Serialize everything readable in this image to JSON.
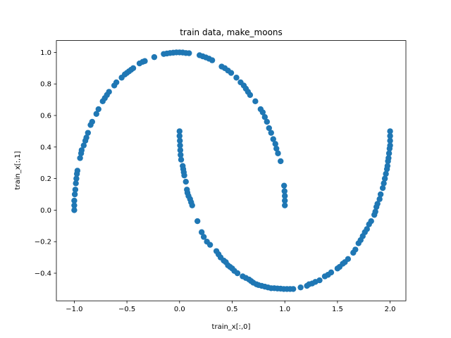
{
  "chart_data": {
    "type": "scatter",
    "title": "train data, make_moons",
    "xlabel": "train_x[:,0]",
    "ylabel": "train_x[:,1]",
    "xlim": [
      -1.17,
      2.15
    ],
    "ylim": [
      -0.575,
      1.075
    ],
    "xticks": [
      -1.0,
      -0.5,
      0.0,
      0.5,
      1.0,
      1.5,
      2.0
    ],
    "xtick_labels": [
      "−1.0",
      "−0.5",
      "0.0",
      "0.5",
      "1.0",
      "1.5",
      "2.0"
    ],
    "yticks": [
      -0.4,
      -0.2,
      0.0,
      0.2,
      0.4,
      0.6,
      0.8,
      1.0
    ],
    "ytick_labels": [
      "−0.4",
      "−0.2",
      "0.0",
      "0.2",
      "0.4",
      "0.6",
      "0.8",
      "1.0"
    ],
    "grid": false,
    "color": "#1f77b4",
    "points": [
      [
        -1.0,
        0.0
      ],
      [
        -1.0,
        0.03
      ],
      [
        -1.0,
        0.06
      ],
      [
        -0.995,
        0.1
      ],
      [
        -0.99,
        0.13
      ],
      [
        -0.985,
        0.17
      ],
      [
        -0.98,
        0.2
      ],
      [
        -0.975,
        0.23
      ],
      [
        -0.97,
        0.25
      ],
      [
        -0.945,
        0.33
      ],
      [
        -0.935,
        0.36
      ],
      [
        -0.93,
        0.38
      ],
      [
        -0.91,
        0.41
      ],
      [
        -0.895,
        0.44
      ],
      [
        -0.885,
        0.46
      ],
      [
        -0.87,
        0.49
      ],
      [
        -0.845,
        0.54
      ],
      [
        -0.83,
        0.56
      ],
      [
        -0.79,
        0.61
      ],
      [
        -0.77,
        0.64
      ],
      [
        -0.73,
        0.69
      ],
      [
        -0.71,
        0.71
      ],
      [
        -0.69,
        0.73
      ],
      [
        -0.67,
        0.75
      ],
      [
        -0.62,
        0.79
      ],
      [
        -0.6,
        0.81
      ],
      [
        -0.55,
        0.84
      ],
      [
        -0.52,
        0.86
      ],
      [
        -0.5,
        0.87
      ],
      [
        -0.48,
        0.88
      ],
      [
        -0.46,
        0.89
      ],
      [
        -0.44,
        0.9
      ],
      [
        -0.38,
        0.93
      ],
      [
        -0.35,
        0.94
      ],
      [
        -0.33,
        0.945
      ],
      [
        -0.24,
        0.97
      ],
      [
        -0.15,
        0.99
      ],
      [
        -0.12,
        0.993
      ],
      [
        -0.09,
        0.996
      ],
      [
        -0.06,
        0.998
      ],
      [
        -0.03,
        1.0
      ],
      [
        0.0,
        1.0
      ],
      [
        0.03,
        0.999
      ],
      [
        0.06,
        0.996
      ],
      [
        0.09,
        0.995
      ],
      [
        0.19,
        0.982
      ],
      [
        0.22,
        0.975
      ],
      [
        0.25,
        0.968
      ],
      [
        0.28,
        0.96
      ],
      [
        0.31,
        0.95
      ],
      [
        0.4,
        0.91
      ],
      [
        0.43,
        0.9
      ],
      [
        0.46,
        0.885
      ],
      [
        0.49,
        0.87
      ],
      [
        0.54,
        0.84
      ],
      [
        0.58,
        0.81
      ],
      [
        0.61,
        0.79
      ],
      [
        0.63,
        0.77
      ],
      [
        0.65,
        0.75
      ],
      [
        0.67,
        0.73
      ],
      [
        0.72,
        0.69
      ],
      [
        0.77,
        0.64
      ],
      [
        0.79,
        0.62
      ],
      [
        0.81,
        0.59
      ],
      [
        0.83,
        0.56
      ],
      [
        0.85,
        0.52
      ],
      [
        0.87,
        0.49
      ],
      [
        0.89,
        0.45
      ],
      [
        0.91,
        0.42
      ],
      [
        0.92,
        0.39
      ],
      [
        0.935,
        0.36
      ],
      [
        0.96,
        0.31
      ],
      [
        1.0,
        0.03
      ],
      [
        1.0,
        0.06
      ],
      [
        1.0,
        0.09
      ],
      [
        0.997,
        0.12
      ],
      [
        0.993,
        0.155
      ],
      [
        0.0,
        0.5
      ],
      [
        0.0,
        0.47
      ],
      [
        0.003,
        0.44
      ],
      [
        0.005,
        0.41
      ],
      [
        0.007,
        0.38
      ],
      [
        0.01,
        0.35
      ],
      [
        0.015,
        0.32
      ],
      [
        0.03,
        0.28
      ],
      [
        0.035,
        0.26
      ],
      [
        0.04,
        0.24
      ],
      [
        0.045,
        0.22
      ],
      [
        0.06,
        0.18
      ],
      [
        0.07,
        0.13
      ],
      [
        0.075,
        0.11
      ],
      [
        0.085,
        0.09
      ],
      [
        0.1,
        0.07
      ],
      [
        0.11,
        0.05
      ],
      [
        0.12,
        0.03
      ],
      [
        0.17,
        -0.07
      ],
      [
        0.21,
        -0.14
      ],
      [
        0.23,
        -0.17
      ],
      [
        0.26,
        -0.2
      ],
      [
        0.29,
        -0.22
      ],
      [
        0.35,
        -0.26
      ],
      [
        0.37,
        -0.28
      ],
      [
        0.39,
        -0.3
      ],
      [
        0.42,
        -0.32
      ],
      [
        0.44,
        -0.33
      ],
      [
        0.46,
        -0.35
      ],
      [
        0.48,
        -0.36
      ],
      [
        0.5,
        -0.37
      ],
      [
        0.52,
        -0.385
      ],
      [
        0.55,
        -0.4
      ],
      [
        0.6,
        -0.42
      ],
      [
        0.63,
        -0.43
      ],
      [
        0.66,
        -0.44
      ],
      [
        0.68,
        -0.45
      ],
      [
        0.7,
        -0.46
      ],
      [
        0.73,
        -0.47
      ],
      [
        0.75,
        -0.475
      ],
      [
        0.78,
        -0.48
      ],
      [
        0.81,
        -0.485
      ],
      [
        0.84,
        -0.49
      ],
      [
        0.87,
        -0.495
      ],
      [
        0.9,
        -0.495
      ],
      [
        0.93,
        -0.497
      ],
      [
        0.96,
        -0.498
      ],
      [
        0.99,
        -0.5
      ],
      [
        1.02,
        -0.5
      ],
      [
        1.05,
        -0.5
      ],
      [
        1.08,
        -0.5
      ],
      [
        1.15,
        -0.49
      ],
      [
        1.21,
        -0.48
      ],
      [
        1.23,
        -0.47
      ],
      [
        1.26,
        -0.465
      ],
      [
        1.29,
        -0.455
      ],
      [
        1.33,
        -0.445
      ],
      [
        1.38,
        -0.42
      ],
      [
        1.41,
        -0.41
      ],
      [
        1.44,
        -0.395
      ],
      [
        1.5,
        -0.37
      ],
      [
        1.52,
        -0.36
      ],
      [
        1.55,
        -0.34
      ],
      [
        1.57,
        -0.33
      ],
      [
        1.6,
        -0.31
      ],
      [
        1.65,
        -0.27
      ],
      [
        1.67,
        -0.25
      ],
      [
        1.7,
        -0.21
      ],
      [
        1.72,
        -0.19
      ],
      [
        1.74,
        -0.165
      ],
      [
        1.76,
        -0.14
      ],
      [
        1.78,
        -0.12
      ],
      [
        1.8,
        -0.09
      ],
      [
        1.82,
        -0.07
      ],
      [
        1.85,
        -0.03
      ],
      [
        1.86,
        -0.01
      ],
      [
        1.87,
        0.02
      ],
      [
        1.88,
        0.04
      ],
      [
        1.9,
        0.07
      ],
      [
        1.91,
        0.1
      ],
      [
        1.93,
        0.14
      ],
      [
        1.94,
        0.17
      ],
      [
        1.95,
        0.2
      ],
      [
        1.96,
        0.23
      ],
      [
        1.97,
        0.26
      ],
      [
        1.975,
        0.28
      ],
      [
        1.98,
        0.31
      ],
      [
        1.985,
        0.33
      ],
      [
        1.99,
        0.36
      ],
      [
        1.995,
        0.39
      ],
      [
        2.0,
        0.41
      ],
      [
        2.0,
        0.44
      ],
      [
        2.0,
        0.47
      ],
      [
        2.0,
        0.5
      ]
    ]
  }
}
